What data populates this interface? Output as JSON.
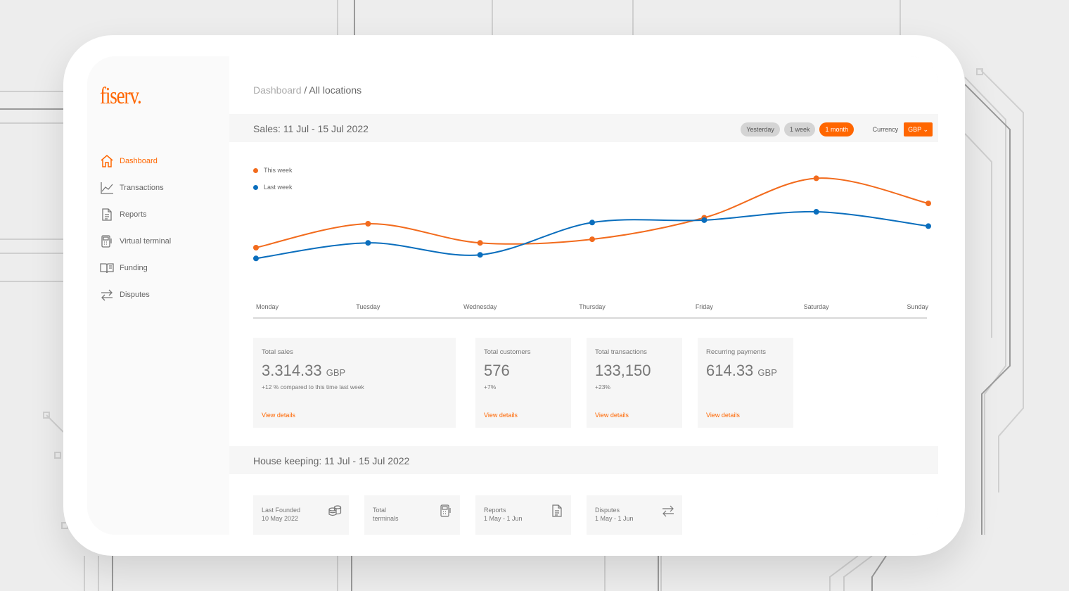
{
  "brand": {
    "logo_text": "fiserv."
  },
  "sidebar": {
    "items": [
      {
        "label": "Dashboard",
        "icon": "home-icon",
        "active": true
      },
      {
        "label": "Transactions",
        "icon": "chart-line-icon",
        "active": false
      },
      {
        "label": "Reports",
        "icon": "document-icon",
        "active": false
      },
      {
        "label": "Virtual terminal",
        "icon": "terminal-icon",
        "active": false
      },
      {
        "label": "Funding",
        "icon": "book-icon",
        "active": false
      },
      {
        "label": "Disputes",
        "icon": "swap-arrows-icon",
        "active": false
      }
    ]
  },
  "breadcrumb": {
    "root": "Dashboard",
    "separator": " / ",
    "current": "All locations"
  },
  "sales": {
    "title": "Sales: 11 Jul - 15 Jul 2022",
    "ranges": [
      "Yesterday",
      "1 week",
      "1 month"
    ],
    "active_range": "1 month",
    "currency_label": "Currency",
    "currency_value": "GBP"
  },
  "chart_data": {
    "type": "line",
    "categories": [
      "Monday",
      "Tuesday",
      "Wednesday",
      "Thursday",
      "Friday",
      "Saturday",
      "Sunday"
    ],
    "series": [
      {
        "name": "This week",
        "color": "#f26b1d",
        "values": [
          40,
          60,
          44,
          47,
          65,
          98,
          77
        ]
      },
      {
        "name": "Last week",
        "color": "#0a6ebd",
        "values": [
          31,
          44,
          34,
          61,
          63,
          70,
          58
        ]
      }
    ],
    "ylim": [
      0,
      100
    ],
    "grid": false,
    "legend": "top-left"
  },
  "stats": [
    {
      "label": "Total sales",
      "value": "3.314.33",
      "unit": "GBP",
      "note": "+12 % compared to this time last week",
      "link": "View details"
    },
    {
      "label": "Total customers",
      "value": "576",
      "unit": "",
      "note": "+7%",
      "link": "View details"
    },
    {
      "label": "Total transactions",
      "value": "133,150",
      "unit": "",
      "note": "+23%",
      "link": "View details"
    },
    {
      "label": "Recurring payments",
      "value": "614.33",
      "unit": "GBP",
      "note": "",
      "link": "View details"
    }
  ],
  "housekeeping": {
    "title": "House keeping: 11 Jul - 15 Jul 2022",
    "items": [
      {
        "line1": "Last Founded",
        "line2": "10 May 2022",
        "icon": "coins-icon"
      },
      {
        "line1": "Total",
        "line2": "terminals",
        "icon": "terminal-icon"
      },
      {
        "line1": "Reports",
        "line2": "1 May - 1 Jun",
        "icon": "document-icon"
      },
      {
        "line1": "Disputes",
        "line2": "1 May - 1 Jun",
        "icon": "swap-arrows-icon"
      }
    ]
  }
}
